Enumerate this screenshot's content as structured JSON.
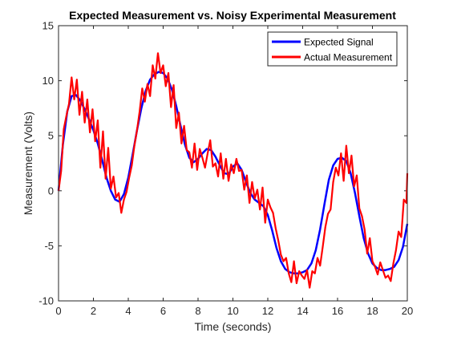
{
  "chart_data": {
    "type": "line",
    "title": "Expected Measurement vs. Noisy Experimental Measurement",
    "xlabel": "Time (seconds)",
    "ylabel": "Measurement (Volts)",
    "xlim": [
      0,
      20
    ],
    "ylim": [
      -10,
      15
    ],
    "xticks": [
      0,
      2,
      4,
      6,
      8,
      10,
      12,
      14,
      16,
      18,
      20
    ],
    "yticks": [
      -10,
      -5,
      0,
      5,
      10,
      15
    ],
    "xtick_labels": [
      "0",
      "2",
      "4",
      "6",
      "8",
      "10",
      "12",
      "14",
      "16",
      "18",
      "20"
    ],
    "ytick_labels": [
      "-10",
      "-5",
      "0",
      "5",
      "10",
      "15"
    ],
    "grid": false,
    "legend_position": "top-right",
    "series": [
      {
        "name": "Expected Signal",
        "color": "#0000ff",
        "x": [
          0,
          0.25,
          0.5,
          0.75,
          1,
          1.25,
          1.5,
          1.75,
          2,
          2.25,
          2.5,
          2.75,
          3,
          3.25,
          3.5,
          3.75,
          4,
          4.25,
          4.5,
          4.75,
          5,
          5.25,
          5.5,
          5.75,
          6,
          6.25,
          6.5,
          6.75,
          7,
          7.25,
          7.5,
          7.75,
          8,
          8.25,
          8.5,
          8.75,
          9,
          9.25,
          9.5,
          9.75,
          10,
          10.25,
          10.5,
          10.75,
          11,
          11.25,
          11.5,
          11.75,
          12,
          12.25,
          12.5,
          12.75,
          13,
          13.25,
          13.5,
          13.75,
          14,
          14.25,
          14.5,
          14.75,
          15,
          15.25,
          15.5,
          15.75,
          16,
          16.25,
          16.5,
          16.75,
          17,
          17.25,
          17.5,
          17.75,
          18,
          18.25,
          18.5,
          18.75,
          19,
          19.25,
          19.5,
          19.75,
          20
        ],
        "y": [
          0,
          4.2,
          7.2,
          8.6,
          8.7,
          8.2,
          7.4,
          6.5,
          5.5,
          4.3,
          2.8,
          1.2,
          0,
          -0.8,
          -1,
          -0.3,
          1.2,
          3.3,
          5.5,
          7.5,
          9.1,
          10.1,
          10.6,
          10.8,
          10.7,
          10.2,
          9.2,
          7.7,
          5.9,
          4.2,
          3,
          2.6,
          2.9,
          3.4,
          3.8,
          3.7,
          3.1,
          2.3,
          1.6,
          1.5,
          2.2,
          2.5,
          1.9,
          0.8,
          -0.2,
          -0.8,
          -1.1,
          -1.4,
          -2.2,
          -3.6,
          -5.2,
          -6.4,
          -7.1,
          -7.4,
          -7.5,
          -7.5,
          -7.4,
          -7.2,
          -6.6,
          -5.4,
          -3.5,
          -1.2,
          1,
          2.3,
          2.9,
          3,
          2.7,
          1.6,
          -0.2,
          -2.3,
          -4.3,
          -5.7,
          -6.6,
          -7,
          -7.2,
          -7.2,
          -7.1,
          -6.9,
          -6.3,
          -5.1,
          -3
        ]
      },
      {
        "name": "Actual Measurement",
        "color": "#ff0000",
        "x": [
          0,
          0.15,
          0.3,
          0.45,
          0.6,
          0.75,
          0.9,
          1.05,
          1.2,
          1.35,
          1.5,
          1.65,
          1.8,
          1.95,
          2.1,
          2.25,
          2.4,
          2.55,
          2.7,
          2.85,
          3,
          3.15,
          3.3,
          3.45,
          3.6,
          3.75,
          3.9,
          4.05,
          4.2,
          4.35,
          4.5,
          4.65,
          4.8,
          4.95,
          5.1,
          5.25,
          5.4,
          5.55,
          5.7,
          5.85,
          6,
          6.15,
          6.3,
          6.45,
          6.6,
          6.75,
          6.9,
          7.05,
          7.2,
          7.35,
          7.5,
          7.65,
          7.8,
          7.95,
          8.1,
          8.25,
          8.4,
          8.55,
          8.7,
          8.85,
          9,
          9.15,
          9.3,
          9.45,
          9.6,
          9.75,
          9.9,
          10.05,
          10.2,
          10.35,
          10.5,
          10.65,
          10.8,
          10.95,
          11.1,
          11.25,
          11.4,
          11.55,
          11.7,
          11.85,
          12,
          12.15,
          12.3,
          12.45,
          12.6,
          12.75,
          12.9,
          13.05,
          13.2,
          13.35,
          13.5,
          13.65,
          13.8,
          13.95,
          14.1,
          14.25,
          14.4,
          14.55,
          14.7,
          14.85,
          15,
          15.15,
          15.3,
          15.45,
          15.6,
          15.75,
          15.9,
          16.05,
          16.2,
          16.35,
          16.5,
          16.65,
          16.8,
          16.95,
          17.1,
          17.25,
          17.4,
          17.55,
          17.7,
          17.85,
          18,
          18.15,
          18.3,
          18.45,
          18.6,
          18.75,
          18.9,
          19.05,
          19.2,
          19.35,
          19.5,
          19.65,
          19.8,
          19.95,
          20
        ],
        "y": [
          0,
          1.8,
          5.6,
          6.8,
          7.9,
          10.3,
          8.3,
          10.1,
          6.9,
          9,
          6.2,
          8.3,
          5.3,
          7.4,
          4.5,
          6.4,
          2.1,
          5.4,
          1.1,
          3.9,
          0.2,
          1.3,
          -0.6,
          -0.2,
          -2,
          -0.8,
          -0.1,
          1.2,
          2.3,
          4.1,
          5.5,
          7.2,
          9.3,
          8.1,
          9.7,
          8.6,
          11.4,
          10.2,
          12.5,
          10.7,
          11.4,
          9.5,
          10.7,
          7.6,
          9.6,
          5.7,
          7.1,
          4.3,
          5.9,
          3.7,
          3.5,
          2.1,
          4.3,
          1.9,
          3.8,
          3,
          2.1,
          3.4,
          4.6,
          2.2,
          2.5,
          1.3,
          3.4,
          1.1,
          2.9,
          0.9,
          2.4,
          1.6,
          2.9,
          1.8,
          1.9,
          0.1,
          1.4,
          -1.1,
          0.8,
          -0.7,
          0.1,
          -1.7,
          0.3,
          -2.9,
          -0.8,
          -1.5,
          -2,
          -3.4,
          -4.5,
          -5.8,
          -6.4,
          -6.1,
          -7.5,
          -8.3,
          -6.4,
          -8.4,
          -7.3,
          -7.7,
          -8,
          -7.2,
          -8.8,
          -7.3,
          -7.5,
          -6.1,
          -6.8,
          -5.1,
          -3.3,
          -2.1,
          -1.7,
          0.8,
          2.1,
          1.4,
          3.4,
          0.9,
          4.1,
          1.6,
          3.2,
          0.4,
          1.4,
          -1.6,
          -2.3,
          -3.5,
          -5.7,
          -4.3,
          -6.4,
          -6.9,
          -7.6,
          -6.5,
          -7.2,
          -7.9,
          -7.7,
          -8.2,
          -6.6,
          -5.4,
          -3.7,
          -4.2,
          -0.8,
          -1.1,
          1.6
        ]
      }
    ]
  }
}
